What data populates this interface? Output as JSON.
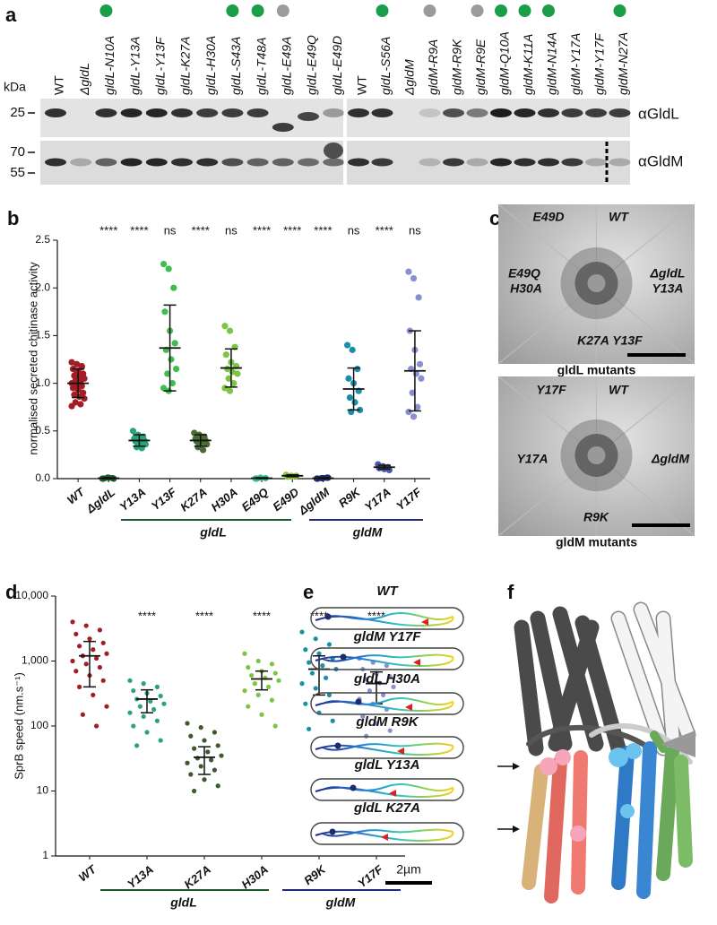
{
  "panel_a": {
    "panel_label": "a",
    "kda": "kDa",
    "markers": [
      "25",
      "70",
      "55"
    ],
    "antibodies": [
      "αGldL",
      "αGldM"
    ],
    "blots": [
      {
        "lanes": [
          "WT",
          "ΔgldL",
          "gldL-N10A",
          "gldL-Y13A",
          "gldL-Y13F",
          "gldL-K27A",
          "gldL-H30A",
          "gldL-S43A",
          "gldL-T48A",
          "gldL-E49A",
          "gldL-E49Q",
          "gldL-E49D"
        ],
        "dots": [
          null,
          null,
          "#1a9e4a",
          null,
          null,
          null,
          null,
          "#1a9e4a",
          "#1a9e4a",
          "#9b9b9b",
          null,
          null
        ]
      },
      {
        "lanes": [
          "WT",
          "gldL-S56A",
          "ΔgldM",
          "gldM-R9A",
          "gldM-R9K",
          "gldM-R9E",
          "gldM-Q10A",
          "gldM-K11A",
          "gldM-N14A",
          "gldM-Y17A",
          "gldM-Y17F",
          "gldM-N27A"
        ],
        "dots": [
          null,
          "#1a9e4a",
          null,
          "#9b9b9b",
          null,
          "#9b9b9b",
          "#1a9e4a",
          "#1a9e4a",
          "#1a9e4a",
          null,
          null,
          "#1a9e4a"
        ]
      }
    ]
  },
  "chart_data": [
    {
      "type": "strip",
      "panel_label": "b",
      "ylabel": "normalised secreted chitinase activity",
      "categories": [
        "WT",
        "ΔgldL",
        "Y13A",
        "Y13F",
        "K27A",
        "H30A",
        "E49Q",
        "E49D",
        "ΔgldM",
        "R9K",
        "Y17A",
        "Y17F"
      ],
      "colors": [
        "#a31d24",
        "#1e5a2e",
        "#2aa37a",
        "#3cbf50",
        "#4b6b35",
        "#7cc444",
        "#3dba8a",
        "#8cc63f",
        "#1f2a6b",
        "#1a8fa8",
        "#4a5aa8",
        "#8a8fd0"
      ],
      "points": [
        [
          1.22,
          1.2,
          1.18,
          1.15,
          1.13,
          1.1,
          1.08,
          1.07,
          1.05,
          1.03,
          1.02,
          1.0,
          0.98,
          0.97,
          0.95,
          0.93,
          0.9,
          0.88,
          0.86,
          0.84,
          0.8,
          0.78,
          0.76,
          1.12,
          1.17
        ],
        [
          0,
          0.01,
          0.005,
          0,
          0.01,
          0
        ],
        [
          0.5,
          0.46,
          0.44,
          0.42,
          0.41,
          0.4,
          0.39,
          0.38,
          0.36,
          0.33,
          0.32
        ],
        [
          2.25,
          2.2,
          2.0,
          1.75,
          1.55,
          1.42,
          1.35,
          1.25,
          1.15,
          1.1,
          1.0,
          0.95,
          0.92
        ],
        [
          0.48,
          0.46,
          0.44,
          0.42,
          0.41,
          0.4,
          0.39,
          0.38,
          0.36,
          0.33,
          0.3
        ],
        [
          1.6,
          1.55,
          1.38,
          1.3,
          1.22,
          1.18,
          1.15,
          1.12,
          1.1,
          1.05,
          1.0,
          0.95,
          0.92
        ],
        [
          0,
          0.01,
          0.005,
          0
        ],
        [
          0.04,
          0.03,
          0.03,
          0.02,
          0.025
        ],
        [
          0,
          0.005,
          0.01,
          0,
          0.005,
          0.01
        ],
        [
          1.4,
          1.35,
          1.15,
          1.05,
          1.0,
          0.92,
          0.85,
          0.8,
          0.72,
          0.7
        ],
        [
          0.15,
          0.13,
          0.12,
          0.11,
          0.1,
          0.09,
          0.12
        ],
        [
          2.17,
          2.1,
          1.9,
          1.55,
          1.35,
          1.2,
          1.15,
          1.1,
          1.05,
          0.9,
          0.75,
          0.7,
          0.65
        ]
      ],
      "mean": [
        1.0,
        0.005,
        0.4,
        1.37,
        0.4,
        1.16,
        0.005,
        0.03,
        0.005,
        0.94,
        0.12,
        1.13
      ],
      "sd": [
        0.15,
        0.005,
        0.06,
        0.45,
        0.06,
        0.2,
        0.005,
        0.01,
        0.005,
        0.22,
        0.02,
        0.42
      ],
      "significance": [
        null,
        "****",
        "****",
        "ns",
        "****",
        "ns",
        "****",
        "****",
        "****",
        "ns",
        "****",
        "ns"
      ],
      "groups": [
        {
          "name": "gldL",
          "color": "#1e5a2e"
        },
        {
          "name": "gldM",
          "color": "#232a7a"
        }
      ],
      "ylim": [
        0,
        2.5
      ],
      "yticks": [
        {
          "value": 0,
          "label": "0.0"
        },
        0.5,
        {
          "value": 1,
          "label": "1.0"
        },
        1.5,
        {
          "value": 2,
          "label": "2.0"
        },
        2.5
      ],
      "log": false
    },
    {
      "type": "strip",
      "panel_label": "d",
      "ylabel": "SprB speed (nm.s⁻¹)",
      "categories": [
        "WT",
        "Y13A",
        "K27A",
        "H30A",
        "R9K",
        "Y17F"
      ],
      "colors": [
        "#a31d24",
        "#2aa37a",
        "#3d5a2c",
        "#7cc444",
        "#1a8fa8",
        "#8a8fd0"
      ],
      "points": [
        [
          4000,
          3500,
          3000,
          2600,
          2200,
          1900,
          1700,
          1500,
          1300,
          1200,
          1100,
          1000,
          900,
          800,
          700,
          600,
          500,
          400,
          300,
          200,
          150,
          100
        ],
        [
          500,
          450,
          400,
          350,
          320,
          290,
          260,
          240,
          220,
          200,
          180,
          160,
          140,
          120,
          100,
          80,
          60,
          50
        ],
        [
          110,
          95,
          80,
          70,
          60,
          50,
          45,
          40,
          35,
          32,
          30,
          27,
          24,
          21,
          18,
          15,
          12,
          10
        ],
        [
          1300,
          1000,
          900,
          800,
          700,
          650,
          600,
          550,
          500,
          450,
          400,
          350,
          300,
          250,
          200,
          150,
          100
        ],
        [
          2800,
          2200,
          1800,
          1500,
          1300,
          1100,
          950,
          850,
          750,
          650,
          550,
          450,
          380,
          300,
          220,
          160,
          120,
          90
        ],
        [
          1100,
          950,
          850,
          750,
          650,
          580,
          520,
          460,
          400,
          350,
          300,
          260,
          220,
          180,
          140,
          110,
          85,
          70
        ]
      ],
      "mean": [
        1200,
        260,
        33,
        530,
        750,
        450
      ],
      "sd": [
        800,
        100,
        15,
        170,
        450,
        230
      ],
      "significance": [
        null,
        "****",
        "****",
        "****",
        "****",
        "****"
      ],
      "groups": [
        {
          "name": "gldL",
          "color": "#1e5a2e"
        },
        {
          "name": "gldM",
          "color": "#232a7a"
        }
      ],
      "ylim": [
        1,
        10000
      ],
      "yticks": [
        1,
        10,
        100,
        {
          "value": 1000,
          "label": "1,000"
        },
        {
          "value": 10000,
          "label": "10,000"
        }
      ],
      "log": true
    }
  ],
  "panel_c": {
    "panel_label": "c",
    "plates": [
      {
        "labels": [
          {
            "text": "E49D",
            "color": "#8cc63f"
          },
          {
            "text": "WT",
            "color": "#a31d24"
          },
          {
            "text": "E49Q",
            "color": "#3dba8a"
          },
          {
            "text": "H30A",
            "color": "#7cc444"
          },
          {
            "text": "ΔgldL",
            "color": "#1e5a2e"
          },
          {
            "text": "Y13A",
            "color": "#2aa37a"
          },
          {
            "text": "K27A",
            "color": "#3d5a2c"
          },
          {
            "text": "Y13F",
            "color": "#3cbf50"
          }
        ],
        "caption": "gldL mutants",
        "color": "#1e5a2e"
      },
      {
        "labels": [
          {
            "text": "Y17F",
            "color": "#8a8fd0"
          },
          {
            "text": "WT",
            "color": "#a31d24"
          },
          {
            "text": "Y17A",
            "color": "#4a5aa8"
          },
          {
            "text": "ΔgldM",
            "color": "#1f2a6b"
          },
          {
            "text": "R9K",
            "color": "#1a8fa8"
          }
        ],
        "caption": "gldM mutants",
        "color": "#1f2a6b"
      }
    ]
  },
  "panel_e": {
    "panel_label": "e",
    "cells": [
      {
        "label": "WT",
        "color": "#a31d24"
      },
      {
        "label": "gldM Y17F",
        "color": "#8a8fd0"
      },
      {
        "label": "gldL H30A",
        "color": "#7cc444"
      },
      {
        "label": "gldM R9K",
        "color": "#1a8fa8"
      },
      {
        "label": "gldL Y13A",
        "color": "#2aa37a"
      },
      {
        "label": "gldL K27A",
        "color": "#3d5a2c"
      }
    ],
    "scale": "2µm"
  },
  "panel_f": {
    "panel_label": "f"
  }
}
